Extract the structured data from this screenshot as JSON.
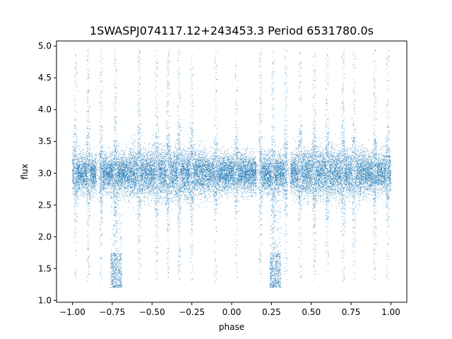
{
  "chart_data": {
    "type": "scatter",
    "title": "1SWASPJ074117.12+243453.3 Period 6531780.0s",
    "xlabel": "phase",
    "ylabel": "flux",
    "xlim": [
      -1.1,
      1.1
    ],
    "ylim": [
      0.97,
      5.08
    ],
    "x_ticks": [
      -1.0,
      -0.75,
      -0.5,
      -0.25,
      0.0,
      0.25,
      0.5,
      0.75,
      1.0
    ],
    "x_tick_labels": [
      "−1.00",
      "−0.75",
      "−0.50",
      "−0.25",
      "0.00",
      "0.25",
      "0.50",
      "0.75",
      "1.00"
    ],
    "y_ticks": [
      1.0,
      1.5,
      2.0,
      2.5,
      3.0,
      3.5,
      4.0,
      4.5,
      5.0
    ],
    "y_tick_labels": [
      "1.0",
      "1.5",
      "2.0",
      "2.5",
      "3.0",
      "3.5",
      "4.0",
      "4.5",
      "5.0"
    ],
    "grid": false,
    "legend": false,
    "marker_color": "#1f77b4",
    "series": [
      {
        "baseline_flux": 3.0,
        "typical_scatter": 0.15,
        "points_approx": 30000,
        "dip_windows": [
          {
            "phase_range": [
              -0.76,
              -0.69
            ],
            "flux_range": [
              1.2,
              1.75
            ]
          },
          {
            "phase_range": [
              0.24,
              0.31
            ],
            "flux_range": [
              1.2,
              1.75
            ]
          }
        ],
        "high_outlier_max": 4.95,
        "low_outlier_min": 1.18
      }
    ]
  }
}
